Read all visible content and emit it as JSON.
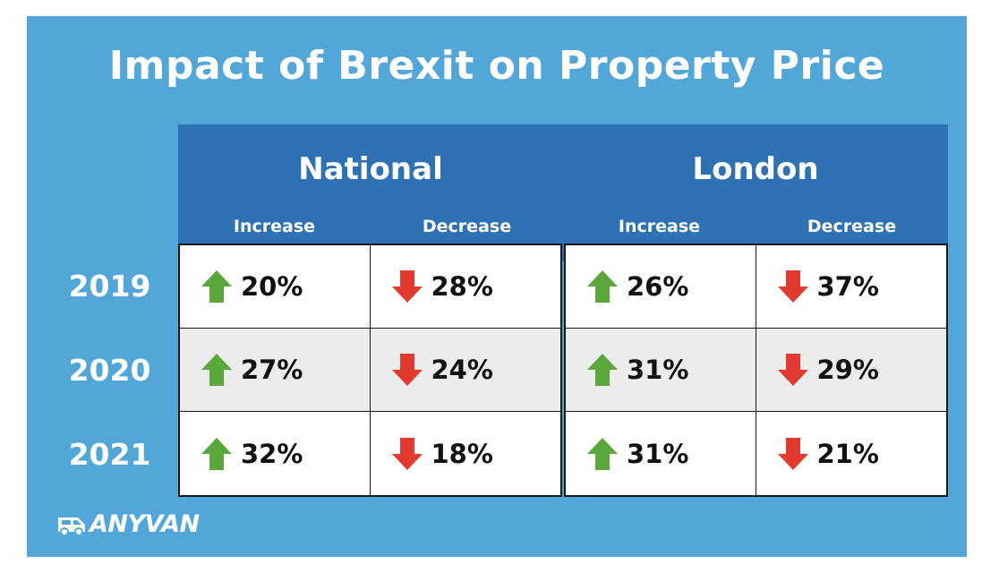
{
  "title": "Impact of Brexit on Property Price",
  "colors": {
    "background": "#52a7d8",
    "header": "#2e72b4",
    "increase": "#5aa83c",
    "decrease": "#e23a2e",
    "shaded_row": "#ececec"
  },
  "chart_data": {
    "type": "table",
    "title": "Impact of Brexit on Property Price",
    "groups": [
      "National",
      "London"
    ],
    "subcolumns": [
      "Increase",
      "Decrease"
    ],
    "rows": [
      "2019",
      "2020",
      "2021"
    ],
    "cells": {
      "National": {
        "Increase": [
          "20%",
          "27%",
          "32%"
        ],
        "Decrease": [
          "28%",
          "24%",
          "18%"
        ]
      },
      "London": {
        "Increase": [
          "26%",
          "31%",
          "31%"
        ],
        "Decrease": [
          "37%",
          "29%",
          "21%"
        ]
      }
    },
    "icons": {
      "Increase": "up-arrow-icon",
      "Decrease": "down-arrow-icon"
    }
  },
  "logo": {
    "text": "ANYVAN",
    "icon": "van-icon"
  }
}
